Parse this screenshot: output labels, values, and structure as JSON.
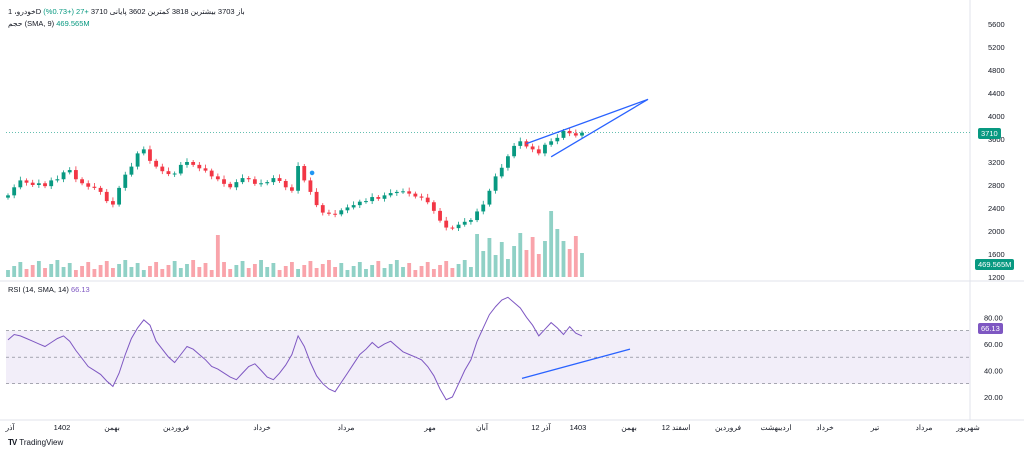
{
  "chart_data": [
    {
      "type": "candlestick",
      "legend": {
        "symbol": "خودرو، 1D",
        "open": "باز 3703",
        "high": "بیشترین 3818",
        "low": "کمترین 3602",
        "close": "پایانی 3710",
        "change": "+27 (+0.73%)",
        "volume_label": "حجم (SMA, 9)",
        "volume_value": "469.565M"
      },
      "y_ticks": [
        "5600",
        "5200",
        "4800",
        "4400",
        "4000",
        "3600",
        "3200",
        "2800",
        "2400",
        "2000",
        "1600",
        "1200"
      ],
      "ylim": [
        1200,
        5600
      ],
      "last_price": "3710",
      "last_volume": "469.565M",
      "close_series": [
        2620,
        2760,
        2880,
        2840,
        2800,
        2830,
        2780,
        2880,
        2900,
        3020,
        3060,
        2900,
        2830,
        2770,
        2750,
        2680,
        2520,
        2460,
        2750,
        2980,
        3120,
        3350,
        3420,
        3220,
        3120,
        3040,
        2990,
        3000,
        3150,
        3200,
        3150,
        3090,
        3050,
        2950,
        2900,
        2820,
        2760,
        2850,
        2920,
        2900,
        2820,
        2830,
        2850,
        2920,
        2870,
        2760,
        2700,
        3130,
        2880,
        2680,
        2450,
        2320,
        2300,
        2290,
        2360,
        2410,
        2450,
        2510,
        2520,
        2590,
        2560,
        2620,
        2660,
        2680,
        2690,
        2650,
        2600,
        2580,
        2500,
        2350,
        2180,
        2060,
        2050,
        2110,
        2160,
        2190,
        2340,
        2460,
        2700,
        2950,
        3100,
        3300,
        3480,
        3560,
        3470,
        3420,
        3350,
        3500,
        3560,
        3620,
        3740,
        3700,
        3660,
        3710
      ],
      "trendline_upper": [
        [
          3560,
          3520
        ],
        [
          4000,
          4290
        ]
      ],
      "trendline_lower": [
        [
          3640,
          3290
        ],
        [
          4000,
          4290
        ]
      ],
      "annotation_dot": 3010
    },
    {
      "type": "line",
      "legend": {
        "label": "RSI (14, SMA, 14)",
        "value": "66.13"
      },
      "y_ticks": [
        "80.00",
        "60.00",
        "40.00",
        "20.00"
      ],
      "ylim": [
        14,
        96
      ],
      "bands": [
        70,
        50,
        30
      ],
      "last_value": "66.13",
      "values": [
        63,
        67,
        66,
        64,
        62,
        60,
        58,
        61,
        64,
        66,
        62,
        55,
        49,
        43,
        40,
        37,
        32,
        28,
        38,
        52,
        64,
        72,
        78,
        74,
        62,
        56,
        50,
        46,
        52,
        58,
        56,
        52,
        48,
        43,
        41,
        38,
        35,
        33,
        38,
        43,
        45,
        40,
        35,
        33,
        38,
        44,
        52,
        66,
        58,
        46,
        36,
        30,
        26,
        24,
        31,
        38,
        45,
        52,
        56,
        61,
        57,
        60,
        62,
        58,
        54,
        52,
        50,
        48,
        43,
        36,
        26,
        18,
        20,
        30,
        40,
        48,
        62,
        72,
        82,
        88,
        93,
        95,
        91,
        87,
        80,
        74,
        66,
        71,
        76,
        72,
        67,
        73,
        68,
        66
      ],
      "trendline": [
        [
          92,
          34
        ],
        [
          69,
          56
        ]
      ]
    }
  ],
  "x_axis_labels": [
    "آذر",
    "1402",
    "بهمن",
    "فروردین",
    "خرداد",
    "مرداد",
    "مهر",
    "آبان",
    "12 آذر",
    "1403",
    "بهمن",
    "12 اسفند",
    "فروردین",
    "اردیبهشت",
    "خرداد",
    "تیر",
    "مرداد",
    "شهریور"
  ],
  "brand": "TradingView",
  "colors": {
    "up": "#089981",
    "down": "#f23645",
    "trend": "#2962ff",
    "rsi": "#7e57c2",
    "band_fill": "#ede7f6"
  }
}
